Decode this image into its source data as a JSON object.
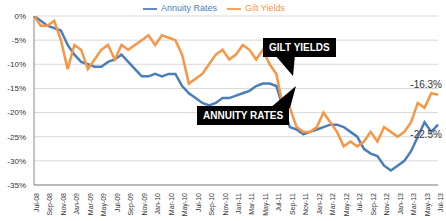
{
  "chart_data": {
    "type": "line",
    "categories": [
      "Jul-08",
      null,
      "Sep-08",
      null,
      "Nov-08",
      null,
      "Jan-09",
      null,
      "Mar-09",
      null,
      "May-09",
      null,
      "Jul-09",
      null,
      "Sep-09",
      null,
      "Nov-09",
      null,
      "Jan-10",
      null,
      "Mar-10",
      null,
      "May-10",
      null,
      "Jul-10",
      null,
      "Sep-10",
      null,
      "Nov-10",
      null,
      "Jan-11",
      null,
      "Mar-11",
      null,
      "May-11",
      null,
      "Jul-11",
      null,
      "Sep-11",
      null,
      "Nov-11",
      null,
      "Jan-12",
      null,
      "Mar-12",
      null,
      "May-12",
      null,
      "Jul-12",
      null,
      "Sep-12",
      null,
      "Nov-12",
      null,
      "Jan-13",
      null,
      "Mar-13",
      null,
      "May-13",
      null,
      "Jul-13"
    ],
    "series": [
      {
        "name": "Annuity Rates",
        "color": "#4a7ebb",
        "values": [
          0,
          -1,
          -2,
          -2.5,
          -3,
          -6,
          -8,
          -9.5,
          -10,
          -10.5,
          -10.5,
          -9.5,
          -9,
          -8,
          -9.5,
          -11,
          -12.5,
          -12.5,
          -12,
          -12.5,
          -12,
          -12,
          -14.5,
          -16,
          -17,
          -18,
          -18.5,
          -18,
          -17,
          -17,
          -16.5,
          -16,
          -15.5,
          -14.5,
          -14,
          -14,
          -14.5,
          -19,
          -23,
          -23.5,
          -24.5,
          -24,
          -23.5,
          -23,
          -22.5,
          -22.5,
          -23,
          -24,
          -25,
          -27.5,
          -28.5,
          -29,
          -31,
          -32,
          -31,
          -30,
          -28,
          -25,
          -22,
          -24,
          -22.5
        ],
        "value_labels": [
          null,
          null,
          null,
          null,
          null,
          null,
          null,
          null,
          null,
          null,
          null,
          null,
          null,
          null,
          null,
          null,
          null,
          null,
          null,
          null,
          null,
          null,
          null,
          null,
          null,
          null,
          null,
          null,
          null,
          null,
          null,
          null,
          null,
          null,
          null,
          null,
          null,
          null,
          null,
          null,
          null,
          null,
          null,
          null,
          null,
          null,
          null,
          null,
          null,
          null,
          null,
          null,
          null,
          null,
          null,
          null,
          null,
          null,
          null,
          null,
          "-22.5%"
        ]
      },
      {
        "name": "Gilt Yields",
        "color": "#f79646",
        "values": [
          0,
          -2,
          -2,
          -1,
          -5,
          -11,
          -6,
          -7,
          -11,
          -9,
          -7,
          -6,
          -9,
          -6,
          -7,
          -6,
          -5,
          -4,
          -6,
          -4,
          -4.5,
          -5,
          -8,
          -14,
          -13,
          -12,
          -10,
          -8,
          -7,
          -9,
          -8,
          -6,
          -7,
          -9,
          -7,
          -10,
          -12,
          -19,
          -19,
          -23,
          -24,
          -24,
          -23,
          -20,
          -22,
          -24,
          -27,
          -26,
          -27,
          -26,
          -24,
          -26,
          -23,
          -24,
          -25,
          -24,
          -22,
          -18,
          -19,
          -16,
          -16.3
        ],
        "value_labels": [
          null,
          null,
          null,
          null,
          null,
          null,
          null,
          null,
          null,
          null,
          null,
          null,
          null,
          null,
          null,
          null,
          null,
          null,
          null,
          null,
          null,
          null,
          null,
          null,
          null,
          null,
          null,
          null,
          null,
          null,
          null,
          null,
          null,
          null,
          null,
          null,
          null,
          null,
          null,
          null,
          null,
          null,
          null,
          null,
          null,
          null,
          null,
          null,
          null,
          null,
          null,
          null,
          null,
          null,
          null,
          null,
          null,
          null,
          null,
          null,
          "-16.3%"
        ]
      }
    ],
    "annotations": [
      {
        "text": "GILT YIELDS",
        "series": "Gilt Yields"
      },
      {
        "text": "ANNUITY RATES",
        "series": "Annuity Rates"
      }
    ],
    "ylim": [
      -35,
      0
    ],
    "yticks": [
      {
        "value": 0,
        "label": "0%"
      },
      {
        "value": -5,
        "label": "-5%"
      },
      {
        "value": -10,
        "label": "-10%"
      },
      {
        "value": -15,
        "label": "-15%"
      },
      {
        "value": -20,
        "label": "-20%"
      },
      {
        "value": -25,
        "label": "-25%"
      },
      {
        "value": -30,
        "label": "-30%"
      },
      {
        "value": -35,
        "label": "-35%"
      }
    ],
    "grid": true,
    "legend": "top",
    "data_labels": true
  }
}
